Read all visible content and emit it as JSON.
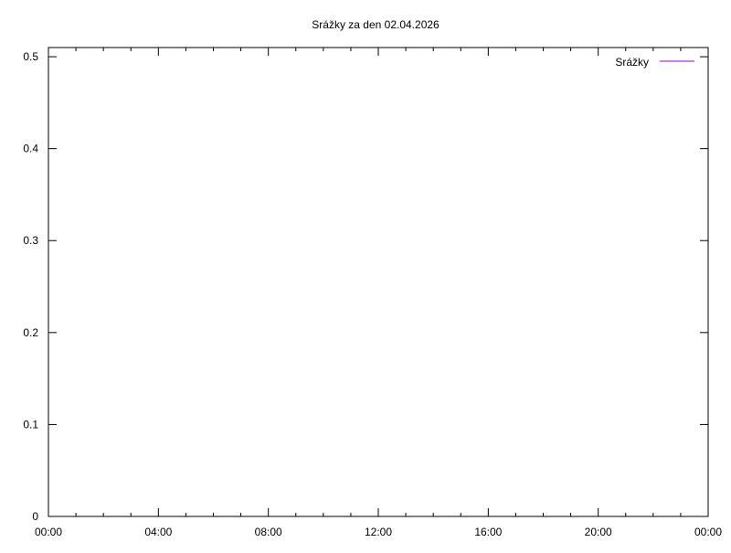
{
  "chart_data": {
    "type": "line",
    "title": "Srážky za den 02.04.2026",
    "xlabel": "",
    "ylabel": "",
    "x_tick_labels": [
      "00:00",
      "04:00",
      "08:00",
      "12:00",
      "16:00",
      "20:00",
      "00:00"
    ],
    "y_tick_labels": [
      "0",
      "0.1",
      "0.2",
      "0.3",
      "0.4",
      "0.5"
    ],
    "y_ticks": [
      0,
      0.1,
      0.2,
      0.3,
      0.4,
      0.5
    ],
    "xlim_hours": [
      0,
      24
    ],
    "ylim": [
      0,
      0.51
    ],
    "grid": false,
    "legend_position": "top-right",
    "series": [
      {
        "name": "Srážky",
        "color": "#9400d3",
        "values": []
      }
    ]
  }
}
